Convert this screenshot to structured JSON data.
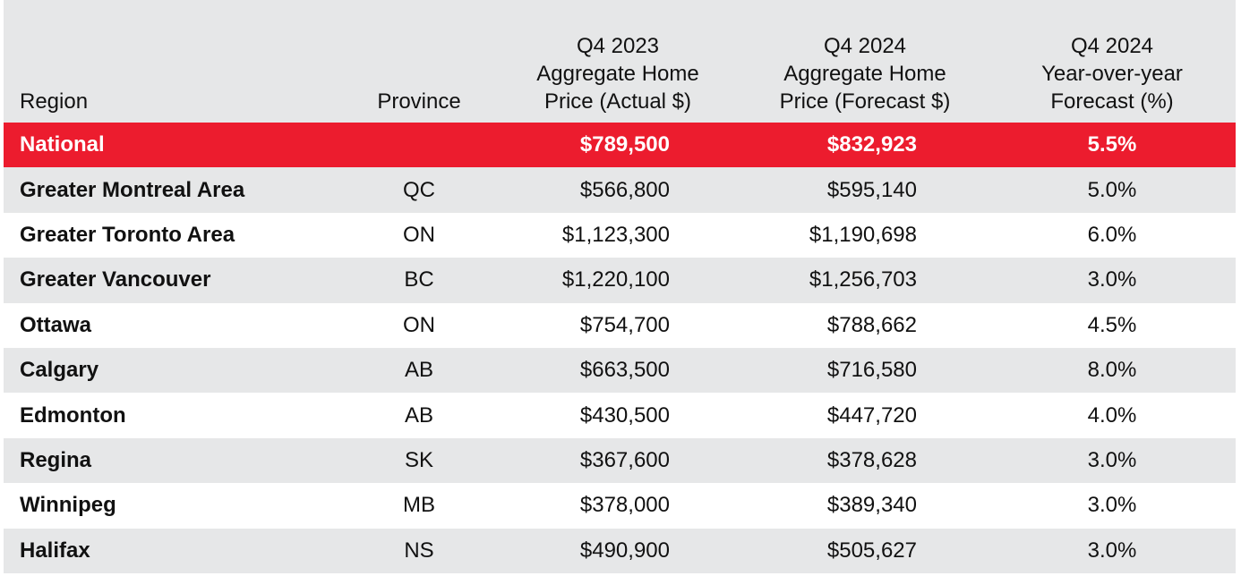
{
  "table": {
    "headers": {
      "region": "Region",
      "province": "Province",
      "q4_2023": [
        "Q4 2023",
        "Aggregate Home",
        "Price (Actual $)"
      ],
      "q4_2024": [
        "Q4 2024",
        "Aggregate Home",
        "Price (Forecast $)"
      ],
      "yoy": [
        "Q4 2024",
        "Year-over-year",
        "Forecast (%)"
      ]
    },
    "rows": [
      {
        "region": "National",
        "province": "",
        "q4_2023": "$789,500",
        "q4_2024": "$832,923",
        "yoy": "5.5%"
      },
      {
        "region": "Greater Montreal Area",
        "province": "QC",
        "q4_2023": "$566,800",
        "q4_2024": "$595,140",
        "yoy": "5.0%"
      },
      {
        "region": "Greater Toronto Area",
        "province": "ON",
        "q4_2023": "$1,123,300",
        "q4_2024": "$1,190,698",
        "yoy": "6.0%"
      },
      {
        "region": "Greater Vancouver",
        "province": "BC",
        "q4_2023": "$1,220,100",
        "q4_2024": "$1,256,703",
        "yoy": "3.0%"
      },
      {
        "region": "Ottawa",
        "province": "ON",
        "q4_2023": "$754,700",
        "q4_2024": "$788,662",
        "yoy": "4.5%"
      },
      {
        "region": "Calgary",
        "province": "AB",
        "q4_2023": "$663,500",
        "q4_2024": "$716,580",
        "yoy": "8.0%"
      },
      {
        "region": "Edmonton",
        "province": "AB",
        "q4_2023": "$430,500",
        "q4_2024": "$447,720",
        "yoy": "4.0%"
      },
      {
        "region": "Regina",
        "province": "SK",
        "q4_2023": "$367,600",
        "q4_2024": "$378,628",
        "yoy": "3.0%"
      },
      {
        "region": "Winnipeg",
        "province": "MB",
        "q4_2023": "$378,000",
        "q4_2024": "$389,340",
        "yoy": "3.0%"
      },
      {
        "region": "Halifax",
        "province": "NS",
        "q4_2023": "$490,900",
        "q4_2024": "$505,627",
        "yoy": "3.0%"
      }
    ]
  },
  "colors": {
    "accent": "#ec1c2e",
    "stripe": "#e6e7e8"
  }
}
